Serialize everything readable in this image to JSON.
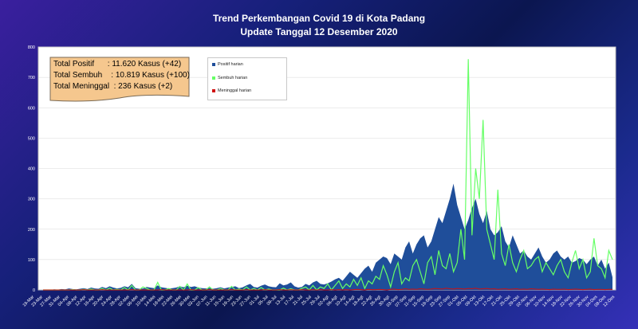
{
  "title_line1": "Trend Perkembangan Covid 19 di Kota Padang",
  "title_line2": "Update Tanggal 12 Desember 2020",
  "summary": {
    "positif": "Total Positif      : 11.620 Kasus (+42)",
    "sembuh": "Total Sembuh    : 10.819 Kasus (+100)",
    "meninggal": "Total Meninggal  : 236 Kasus (+2)"
  },
  "colors": {
    "positif": "#1f4e9a",
    "sembuh": "#66ff66",
    "meninggal": "#d01010",
    "info_box": "#f5c78e"
  },
  "chart_data": {
    "type": "area",
    "ylim": [
      0,
      800
    ],
    "yticks": [
      "0",
      "100",
      "200",
      "300",
      "400",
      "500",
      "600",
      "700",
      "800"
    ],
    "x_tick_labels": [
      "19-Mar",
      "23-Mar",
      "27-Mar",
      "31-Mar",
      "04-Apr",
      "08-Apr",
      "12-Apr",
      "16-Apr",
      "20-Apr",
      "24-Apr",
      "28-Apr",
      "02-Mei",
      "06-Mei",
      "10-Mei",
      "14-Mei",
      "18-Mei",
      "22-Mei",
      "26-Mei",
      "30-Mei",
      "03-Jun",
      "07-Jun",
      "11-Jun",
      "15-Jun",
      "19-Jun",
      "23-Jun",
      "27-Jun",
      "01-Jul",
      "05-Jul",
      "09-Jul",
      "13-Jul",
      "17-Jul",
      "21-Jul",
      "25-Jul",
      "29-Jul",
      "02-Agt",
      "06-Agt",
      "10-Agt",
      "14-Agt",
      "18-Agt",
      "22-Agt",
      "26-Agt",
      "30-Agt",
      "03-Sep",
      "07-Sep",
      "11-Sep",
      "15-Sep",
      "19-Sep",
      "23-Sep",
      "27-Sep",
      "01-Okt",
      "05-Okt",
      "09-Okt",
      "13-Okt",
      "17-Okt",
      "21-Okt",
      "25-Okt",
      "29-Okt",
      "02-Nov",
      "06-Nov",
      "10-Nov",
      "14-Nov",
      "18-Nov",
      "22-Nov",
      "26-Nov",
      "30-Nov",
      "04-Des",
      "08-Des",
      "12-Des"
    ],
    "series": [
      {
        "name": "Positif harian",
        "key": "positif",
        "values": [
          0,
          1,
          0,
          2,
          1,
          3,
          2,
          5,
          3,
          2,
          4,
          6,
          3,
          8,
          5,
          4,
          10,
          6,
          12,
          8,
          5,
          7,
          12,
          9,
          20,
          6,
          4,
          5,
          10,
          8,
          6,
          15,
          9,
          7,
          5,
          6,
          8,
          12,
          9,
          14,
          10,
          12,
          8,
          6,
          5,
          7,
          4,
          6,
          9,
          5,
          8,
          10,
          12,
          6,
          9,
          15,
          20,
          10,
          8,
          14,
          18,
          12,
          10,
          9,
          22,
          15,
          18,
          25,
          12,
          8,
          10,
          20,
          15,
          25,
          30,
          20,
          18,
          22,
          28,
          35,
          40,
          30,
          45,
          60,
          50,
          40,
          55,
          70,
          80,
          60,
          90,
          100,
          110,
          105,
          85,
          120,
          110,
          100,
          140,
          160,
          120,
          150,
          170,
          180,
          140,
          160,
          200,
          240,
          220,
          260,
          300,
          350,
          280,
          240,
          200,
          230,
          270,
          300,
          250,
          220,
          260,
          200,
          180,
          190,
          210,
          160,
          140,
          180,
          150,
          120,
          130,
          110,
          100,
          120,
          140,
          110,
          90,
          100,
          120,
          130,
          110,
          100,
          110,
          90,
          95,
          105,
          100,
          85,
          100,
          110,
          80,
          100,
          70,
          90,
          42
        ],
        "tail_note": ""
      },
      {
        "name": "Sembuh harian",
        "key": "sembuh",
        "values": [
          0,
          0,
          0,
          0,
          0,
          0,
          0,
          0,
          1,
          0,
          0,
          2,
          0,
          3,
          0,
          0,
          5,
          0,
          6,
          0,
          2,
          0,
          8,
          0,
          15,
          0,
          0,
          10,
          5,
          0,
          0,
          25,
          0,
          0,
          5,
          0,
          0,
          12,
          0,
          20,
          0,
          0,
          8,
          0,
          0,
          10,
          0,
          0,
          5,
          0,
          0,
          12,
          0,
          3,
          0,
          10,
          0,
          5,
          0,
          8,
          0,
          3,
          0,
          0,
          0,
          6,
          0,
          4,
          0,
          0,
          5,
          10,
          0,
          15,
          0,
          10,
          5,
          20,
          0,
          15,
          30,
          5,
          20,
          10,
          35,
          15,
          40,
          5,
          30,
          20,
          45,
          35,
          80,
          50,
          10,
          60,
          90,
          20,
          40,
          30,
          80,
          100,
          60,
          20,
          90,
          110,
          50,
          130,
          80,
          70,
          120,
          60,
          90,
          200,
          100,
          760,
          180,
          400,
          300,
          560,
          200,
          150,
          100,
          330,
          120,
          80,
          150,
          90,
          60,
          100,
          130,
          70,
          80,
          100,
          110,
          60,
          90,
          70,
          50,
          80,
          100,
          60,
          40,
          90,
          130,
          70,
          100,
          40,
          60,
          170,
          80,
          70,
          40,
          130,
          100
        ],
        "tail_note": ""
      },
      {
        "name": "Meninggal harian",
        "key": "meninggal",
        "values": [
          0,
          0,
          0,
          0,
          0,
          0,
          0,
          0,
          0,
          0,
          0,
          1,
          0,
          0,
          0,
          0,
          1,
          0,
          0,
          0,
          0,
          0,
          0,
          0,
          1,
          0,
          0,
          0,
          0,
          0,
          0,
          0,
          1,
          0,
          0,
          0,
          0,
          0,
          0,
          0,
          1,
          0,
          0,
          0,
          0,
          1,
          0,
          0,
          0,
          0,
          0,
          1,
          0,
          0,
          0,
          1,
          0,
          0,
          0,
          0,
          1,
          0,
          0,
          0,
          1,
          0,
          0,
          1,
          0,
          0,
          1,
          0,
          0,
          1,
          0,
          1,
          0,
          0,
          1,
          0,
          1,
          0,
          1,
          0,
          1,
          2,
          1,
          0,
          2,
          1,
          1,
          2,
          1,
          0,
          2,
          3,
          1,
          2,
          4,
          2,
          3,
          2,
          4,
          3,
          2,
          3,
          5,
          4,
          3,
          6,
          4,
          3,
          5,
          4,
          3,
          5,
          4,
          6,
          3,
          4,
          5,
          3,
          4,
          2,
          3,
          4,
          2,
          3,
          4,
          2,
          3,
          2,
          4,
          3,
          2,
          3,
          2,
          1,
          3,
          2,
          2,
          3,
          1,
          2,
          3,
          2,
          1,
          2,
          3,
          1,
          2,
          2,
          1,
          2,
          2
        ],
        "tail_note": ""
      }
    ]
  }
}
